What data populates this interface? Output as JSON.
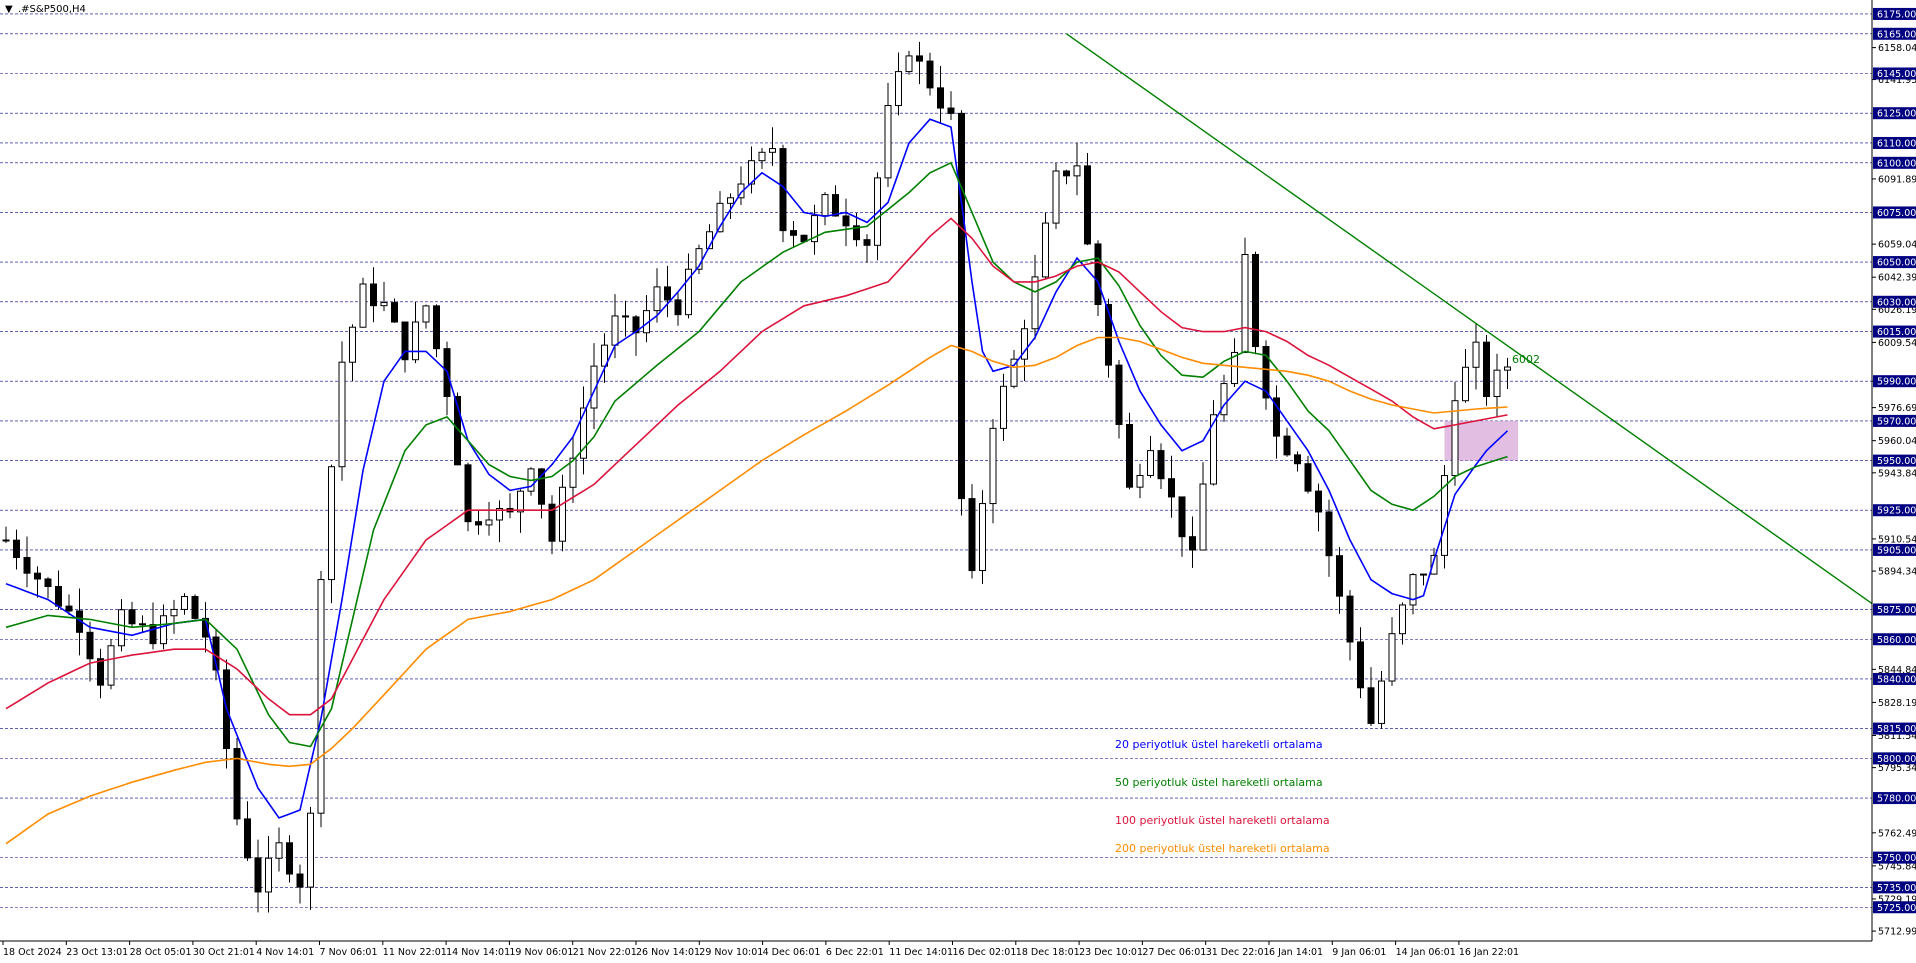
{
  "chart_data": {
    "type": "candlestick",
    "title": ".#S&P500,H4",
    "title_marker": "▼",
    "y_range": [
      5708.0,
      6179.0
    ],
    "y_tick_labels": [
      6158.04,
      6141.95,
      6091.89,
      6059.04,
      6042.39,
      6026.19,
      6009.54,
      5990.0,
      5976.69,
      5960.04,
      5943.84,
      5910.54,
      5894.34,
      5844.84,
      5828.19,
      5811.54,
      5795.34,
      5762.49,
      5745.84,
      5729.19,
      5712.99
    ],
    "key_levels": [
      6175.0,
      6165.0,
      6145.0,
      6125.0,
      6110.0,
      6100.0,
      6075.0,
      6050.0,
      6030.0,
      6015.0,
      5990.0,
      5970.0,
      5950.0,
      5925.0,
      5905.0,
      5875.0,
      5860.0,
      5840.0,
      5815.0,
      5800.0,
      5780.0,
      5750.0,
      5735.0,
      5725.0
    ],
    "time_labels": [
      "18 Oct 2024",
      "23 Oct 13:01",
      "28 Oct 05:01",
      "30 Oct 21:01",
      "4 Nov 14:01",
      "7 Nov 06:01",
      "11 Nov 22:01",
      "14 Nov 14:01",
      "19 Nov 06:01",
      "21 Nov 22:01",
      "26 Nov 14:01",
      "29 Nov 10:01",
      "4 Dec 06:01",
      "6 Dec 22:01",
      "11 Dec 14:01",
      "16 Dec 02:01",
      "18 Dec 18:01",
      "23 Dec 10:01",
      "27 Dec 06:01",
      "31 Dec 22:01",
      "6 Jan 14:01",
      "9 Jan 06:01",
      "14 Jan 06:01",
      "16 Jan 22:01"
    ],
    "price_path_anchors": [
      [
        0,
        5910
      ],
      [
        4,
        5885
      ],
      [
        7,
        5868
      ],
      [
        9,
        5840
      ],
      [
        11,
        5870
      ],
      [
        14,
        5862
      ],
      [
        17,
        5880
      ],
      [
        19,
        5862
      ],
      [
        20,
        5840
      ],
      [
        22,
        5770
      ],
      [
        24,
        5735
      ],
      [
        26,
        5755
      ],
      [
        28,
        5738
      ],
      [
        29,
        5770
      ],
      [
        30,
        5895
      ],
      [
        32,
        6000
      ],
      [
        34,
        6035
      ],
      [
        36,
        6028
      ],
      [
        38,
        6005
      ],
      [
        40,
        6028
      ],
      [
        42,
        5985
      ],
      [
        44,
        5918
      ],
      [
        46,
        5925
      ],
      [
        48,
        5922
      ],
      [
        50,
        5950
      ],
      [
        52,
        5910
      ],
      [
        54,
        5955
      ],
      [
        56,
        5998
      ],
      [
        58,
        6020
      ],
      [
        60,
        6015
      ],
      [
        62,
        6035
      ],
      [
        64,
        6028
      ],
      [
        66,
        6055
      ],
      [
        68,
        6075
      ],
      [
        70,
        6092
      ],
      [
        72,
        6102
      ],
      [
        73,
        6108
      ],
      [
        74,
        6070
      ],
      [
        76,
        6062
      ],
      [
        78,
        6080
      ],
      [
        80,
        6072
      ],
      [
        82,
        6060
      ],
      [
        84,
        6125
      ],
      [
        86,
        6158
      ],
      [
        88,
        6140
      ],
      [
        90,
        6122
      ],
      [
        91,
        5930
      ],
      [
        92,
        5890
      ],
      [
        94,
        5970
      ],
      [
        96,
        6000
      ],
      [
        98,
        6040
      ],
      [
        100,
        6092
      ],
      [
        102,
        6100
      ],
      [
        103,
        6058
      ],
      [
        105,
        6000
      ],
      [
        107,
        5935
      ],
      [
        109,
        5960
      ],
      [
        111,
        5930
      ],
      [
        113,
        5900
      ],
      [
        115,
        5975
      ],
      [
        117,
        6000
      ],
      [
        118,
        6052
      ],
      [
        119,
        6010
      ],
      [
        121,
        5962
      ],
      [
        123,
        5952
      ],
      [
        125,
        5925
      ],
      [
        127,
        5880
      ],
      [
        129,
        5838
      ],
      [
        130,
        5818
      ],
      [
        132,
        5860
      ],
      [
        134,
        5890
      ],
      [
        136,
        5900
      ],
      [
        138,
        5985
      ],
      [
        140,
        6005
      ],
      [
        141,
        5985
      ],
      [
        143,
        5998
      ]
    ],
    "bars_count": 144,
    "series": [
      {
        "name": "20 periyotluk üstel hareketli ortalama",
        "color": "#0000ff",
        "values": [
          [
            0,
            5888
          ],
          [
            4,
            5880
          ],
          [
            8,
            5866
          ],
          [
            12,
            5862
          ],
          [
            16,
            5868
          ],
          [
            19,
            5870
          ],
          [
            21,
            5825
          ],
          [
            24,
            5785
          ],
          [
            26,
            5770
          ],
          [
            28,
            5774
          ],
          [
            30,
            5820
          ],
          [
            32,
            5880
          ],
          [
            34,
            5945
          ],
          [
            36,
            5990
          ],
          [
            38,
            6005
          ],
          [
            40,
            6005
          ],
          [
            42,
            5995
          ],
          [
            44,
            5960
          ],
          [
            46,
            5943
          ],
          [
            48,
            5935
          ],
          [
            50,
            5937
          ],
          [
            52,
            5948
          ],
          [
            54,
            5962
          ],
          [
            56,
            5985
          ],
          [
            58,
            6008
          ],
          [
            60,
            6015
          ],
          [
            62,
            6023
          ],
          [
            64,
            6035
          ],
          [
            66,
            6048
          ],
          [
            68,
            6068
          ],
          [
            70,
            6085
          ],
          [
            72,
            6095
          ],
          [
            74,
            6088
          ],
          [
            76,
            6075
          ],
          [
            78,
            6073
          ],
          [
            80,
            6075
          ],
          [
            82,
            6070
          ],
          [
            84,
            6080
          ],
          [
            86,
            6110
          ],
          [
            88,
            6122
          ],
          [
            90,
            6118
          ],
          [
            91,
            6080
          ],
          [
            92,
            6040
          ],
          [
            93,
            6005
          ],
          [
            94,
            5995
          ],
          [
            96,
            5998
          ],
          [
            98,
            6012
          ],
          [
            100,
            6035
          ],
          [
            102,
            6052
          ],
          [
            104,
            6040
          ],
          [
            106,
            6010
          ],
          [
            108,
            5985
          ],
          [
            110,
            5968
          ],
          [
            112,
            5955
          ],
          [
            114,
            5960
          ],
          [
            116,
            5978
          ],
          [
            118,
            5990
          ],
          [
            120,
            5985
          ],
          [
            122,
            5970
          ],
          [
            124,
            5955
          ],
          [
            126,
            5935
          ],
          [
            128,
            5910
          ],
          [
            130,
            5890
          ],
          [
            132,
            5883
          ],
          [
            134,
            5880
          ],
          [
            135,
            5882
          ],
          [
            136,
            5900
          ],
          [
            138,
            5933
          ],
          [
            140,
            5948
          ],
          [
            141,
            5955
          ],
          [
            143,
            5965
          ]
        ]
      },
      {
        "name": "50 periyotluk üstel hareketli ortalama",
        "color": "#008000",
        "values": [
          [
            0,
            5866
          ],
          [
            4,
            5872
          ],
          [
            8,
            5870
          ],
          [
            12,
            5866
          ],
          [
            16,
            5868
          ],
          [
            19,
            5870
          ],
          [
            22,
            5855
          ],
          [
            25,
            5822
          ],
          [
            27,
            5808
          ],
          [
            29,
            5806
          ],
          [
            31,
            5825
          ],
          [
            33,
            5870
          ],
          [
            35,
            5915
          ],
          [
            38,
            5955
          ],
          [
            40,
            5968
          ],
          [
            42,
            5972
          ],
          [
            44,
            5960
          ],
          [
            46,
            5948
          ],
          [
            48,
            5942
          ],
          [
            50,
            5940
          ],
          [
            52,
            5942
          ],
          [
            54,
            5950
          ],
          [
            56,
            5962
          ],
          [
            58,
            5980
          ],
          [
            62,
            5998
          ],
          [
            66,
            6015
          ],
          [
            70,
            6040
          ],
          [
            74,
            6055
          ],
          [
            78,
            6065
          ],
          [
            82,
            6068
          ],
          [
            86,
            6085
          ],
          [
            88,
            6095
          ],
          [
            90,
            6100
          ],
          [
            92,
            6075
          ],
          [
            94,
            6050
          ],
          [
            96,
            6040
          ],
          [
            98,
            6035
          ],
          [
            100,
            6040
          ],
          [
            102,
            6050
          ],
          [
            104,
            6052
          ],
          [
            106,
            6038
          ],
          [
            108,
            6018
          ],
          [
            110,
            6003
          ],
          [
            112,
            5993
          ],
          [
            114,
            5992
          ],
          [
            116,
            6000
          ],
          [
            118,
            6005
          ],
          [
            120,
            6003
          ],
          [
            122,
            5990
          ],
          [
            124,
            5975
          ],
          [
            126,
            5965
          ],
          [
            128,
            5950
          ],
          [
            130,
            5935
          ],
          [
            132,
            5928
          ],
          [
            134,
            5925
          ],
          [
            136,
            5932
          ],
          [
            138,
            5942
          ],
          [
            140,
            5947
          ],
          [
            143,
            5952
          ]
        ]
      },
      {
        "name": "100 periyotluk üstel hareketli ortalama",
        "color": "#dc143c",
        "values": [
          [
            0,
            5825
          ],
          [
            4,
            5838
          ],
          [
            8,
            5848
          ],
          [
            12,
            5852
          ],
          [
            16,
            5855
          ],
          [
            19,
            5855
          ],
          [
            22,
            5845
          ],
          [
            25,
            5830
          ],
          [
            27,
            5822
          ],
          [
            29,
            5822
          ],
          [
            31,
            5830
          ],
          [
            33,
            5850
          ],
          [
            36,
            5880
          ],
          [
            40,
            5910
          ],
          [
            44,
            5925
          ],
          [
            48,
            5925
          ],
          [
            52,
            5925
          ],
          [
            56,
            5938
          ],
          [
            60,
            5958
          ],
          [
            64,
            5978
          ],
          [
            68,
            5995
          ],
          [
            72,
            6015
          ],
          [
            76,
            6028
          ],
          [
            80,
            6033
          ],
          [
            84,
            6040
          ],
          [
            88,
            6063
          ],
          [
            90,
            6072
          ],
          [
            92,
            6062
          ],
          [
            94,
            6048
          ],
          [
            96,
            6040
          ],
          [
            98,
            6040
          ],
          [
            100,
            6043
          ],
          [
            102,
            6048
          ],
          [
            104,
            6050
          ],
          [
            106,
            6045
          ],
          [
            108,
            6035
          ],
          [
            110,
            6025
          ],
          [
            112,
            6017
          ],
          [
            114,
            6015
          ],
          [
            116,
            6015
          ],
          [
            118,
            6017
          ],
          [
            120,
            6015
          ],
          [
            122,
            6010
          ],
          [
            124,
            6003
          ],
          [
            126,
            5998
          ],
          [
            128,
            5992
          ],
          [
            130,
            5986
          ],
          [
            132,
            5980
          ],
          [
            134,
            5972
          ],
          [
            136,
            5966
          ],
          [
            138,
            5968
          ],
          [
            140,
            5970
          ],
          [
            143,
            5973
          ]
        ]
      },
      {
        "name": "200 periyotluk üstel hareketli ortalama",
        "color": "#ff8c00",
        "values": [
          [
            0,
            5757
          ],
          [
            4,
            5772
          ],
          [
            8,
            5781
          ],
          [
            12,
            5788
          ],
          [
            16,
            5794
          ],
          [
            19,
            5798
          ],
          [
            22,
            5800
          ],
          [
            25,
            5797
          ],
          [
            27,
            5796
          ],
          [
            29,
            5797
          ],
          [
            31,
            5805
          ],
          [
            33,
            5815
          ],
          [
            36,
            5832
          ],
          [
            40,
            5855
          ],
          [
            44,
            5870
          ],
          [
            48,
            5874
          ],
          [
            52,
            5880
          ],
          [
            56,
            5890
          ],
          [
            60,
            5905
          ],
          [
            64,
            5920
          ],
          [
            68,
            5935
          ],
          [
            72,
            5950
          ],
          [
            76,
            5963
          ],
          [
            80,
            5975
          ],
          [
            84,
            5988
          ],
          [
            88,
            6002
          ],
          [
            90,
            6008
          ],
          [
            92,
            6005
          ],
          [
            94,
            6000
          ],
          [
            96,
            5997
          ],
          [
            98,
            5998
          ],
          [
            100,
            6002
          ],
          [
            102,
            6008
          ],
          [
            104,
            6012
          ],
          [
            106,
            6012
          ],
          [
            108,
            6010
          ],
          [
            110,
            6006
          ],
          [
            112,
            6002
          ],
          [
            114,
            5999
          ],
          [
            116,
            5998
          ],
          [
            118,
            5997
          ],
          [
            120,
            5996
          ],
          [
            122,
            5995
          ],
          [
            124,
            5993
          ],
          [
            126,
            5990
          ],
          [
            128,
            5985
          ],
          [
            130,
            5981
          ],
          [
            132,
            5978
          ],
          [
            134,
            5976
          ],
          [
            136,
            5974
          ],
          [
            138,
            5975
          ],
          [
            140,
            5976
          ],
          [
            143,
            5977
          ]
        ]
      }
    ],
    "trendline": {
      "color": "#008000",
      "start": [
        101,
        6165.0
      ],
      "end": [
        190,
        5878.0
      ],
      "label": "6002"
    },
    "highlight_zone": {
      "color": "#d8a8d8",
      "x_range": [
        137,
        144
      ],
      "price_range": [
        5950.0,
        5970.0
      ]
    },
    "colors": {
      "candle": "#000000",
      "grid": "#000080",
      "axis": "#000000",
      "badge_bg": "#000080"
    }
  }
}
